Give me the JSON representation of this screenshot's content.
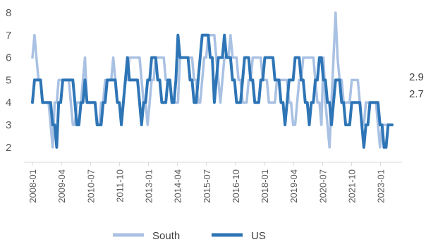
{
  "chart_data": {
    "type": "line",
    "title": "",
    "xlabel": "",
    "ylabel": "",
    "ylim": [
      1.5,
      8.2
    ],
    "y_ticks": [
      2,
      3,
      4,
      5,
      6,
      7,
      8
    ],
    "x_tick_labels": [
      "2008-01",
      "2009-04",
      "2010-07",
      "2011-10",
      "2013-01",
      "2014-04",
      "2015-07",
      "2016-10",
      "2018-01",
      "2019-04",
      "2020-07",
      "2021-10",
      "2023-01"
    ],
    "x_start": "2008-01",
    "x_end": "2023-07",
    "grid": false,
    "legend": "bottom",
    "end_labels": [
      "2.9",
      "2.7"
    ],
    "series": [
      {
        "name": "South",
        "color": "#a9c1e3",
        "values": [
          6,
          7,
          6,
          5,
          5,
          4,
          4,
          4,
          4,
          3,
          2,
          4,
          4,
          5,
          5,
          5,
          5,
          5,
          5,
          4,
          3,
          3,
          4,
          4,
          4,
          5,
          6,
          4,
          4,
          4,
          4,
          4,
          3,
          3,
          4,
          4,
          5,
          5,
          5,
          5,
          6,
          5,
          4,
          4,
          3,
          4,
          5,
          5,
          6,
          6,
          6,
          6,
          6,
          6,
          5,
          4,
          4,
          3,
          4,
          5,
          5,
          6,
          6,
          6,
          6,
          6,
          5,
          5,
          5,
          4,
          4,
          4,
          4,
          6,
          6,
          6,
          6,
          6,
          6,
          6,
          5,
          5,
          4,
          4,
          5,
          6,
          6,
          7,
          7,
          7,
          7,
          6,
          5,
          4,
          5,
          6,
          6,
          6,
          7,
          6,
          6,
          6,
          5,
          5,
          4,
          4,
          4,
          5,
          5,
          6,
          6,
          6,
          6,
          6,
          5,
          5,
          5,
          4,
          4,
          4,
          4,
          5,
          5,
          5,
          5,
          5,
          5,
          4,
          4,
          3,
          3,
          4,
          5,
          5,
          6,
          6,
          6,
          6,
          6,
          6,
          5,
          4,
          4,
          3,
          6,
          4,
          3,
          2,
          4,
          6,
          8,
          6,
          5,
          5,
          4,
          4,
          4,
          4,
          5,
          5,
          5,
          5,
          4,
          3,
          3,
          4,
          4,
          4,
          4,
          4,
          4,
          3,
          2,
          3,
          3,
          3,
          3,
          3,
          3
        ],
        "last_value": 2.9
      },
      {
        "name": "US",
        "color": "#2e75b6",
        "values": [
          4,
          5,
          5,
          5,
          5,
          4,
          4,
          4,
          4,
          4,
          3,
          3,
          2,
          4,
          4,
          5,
          5,
          5,
          5,
          5,
          5,
          4,
          3,
          3,
          4,
          4,
          5,
          4,
          4,
          4,
          4,
          4,
          3,
          3,
          3,
          4,
          4,
          5,
          5,
          5,
          5,
          5,
          4,
          4,
          3,
          4,
          5,
          6,
          5,
          5,
          5,
          5,
          5,
          4,
          3,
          4,
          4,
          5,
          5,
          6,
          6,
          6,
          5,
          5,
          4,
          4,
          4,
          5,
          5,
          4,
          4,
          5,
          7,
          6,
          6,
          6,
          6,
          6,
          5,
          5,
          4,
          4,
          5,
          6,
          7,
          7,
          7,
          7,
          6,
          6,
          4,
          5,
          6,
          6,
          6,
          7,
          6,
          6,
          6,
          5,
          5,
          4,
          4,
          4,
          5,
          6,
          6,
          6,
          5,
          5,
          4,
          4,
          4,
          5,
          5,
          6,
          6,
          6,
          6,
          6,
          5,
          5,
          5,
          4,
          4,
          3,
          4,
          5,
          5,
          5,
          6,
          6,
          6,
          5,
          5,
          4,
          4,
          3,
          4,
          4,
          5,
          5,
          6,
          6,
          5,
          5,
          4,
          4,
          3,
          4,
          5,
          5,
          5,
          4,
          4,
          3,
          3,
          3,
          4,
          4,
          4,
          4,
          4,
          3,
          2,
          3,
          3,
          4,
          4,
          4,
          4,
          4,
          3,
          3,
          2,
          2,
          3,
          3,
          3
        ],
        "last_value": 2.7
      }
    ]
  }
}
